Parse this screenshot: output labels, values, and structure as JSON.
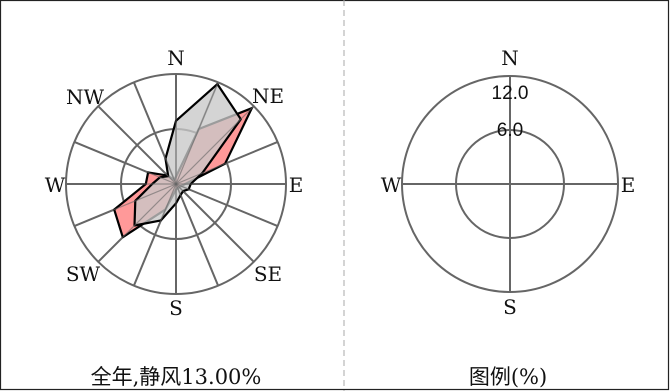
{
  "chart_data": [
    {
      "type": "windrose",
      "caption": "全年,静风13.00%",
      "directions": [
        "N",
        "NNE",
        "NE",
        "ENE",
        "E",
        "ESE",
        "SE",
        "SSE",
        "S",
        "SSW",
        "SW",
        "WSW",
        "W",
        "WNW",
        "NW",
        "NNW"
      ],
      "direction_labels": {
        "N": "N",
        "NE": "NE",
        "E": "E",
        "SE": "SE",
        "S": "S",
        "SW": "SW",
        "W": "W",
        "NW": "NW"
      },
      "rmax": 12.0,
      "rings": [
        6.0,
        12.0
      ],
      "series": [
        {
          "color": "#ff9999",
          "values": [
            0.8,
            6.5,
            11.7,
            5.8,
            1.0,
            0.6,
            0.5,
            0.5,
            0.6,
            3.0,
            8.2,
            7.3,
            3.3,
            3.3,
            1.3,
            0.5
          ]
        },
        {
          "color": "#c8c8c8",
          "values": [
            6.9,
            11.8,
            10.0,
            3.1,
            1.6,
            1.5,
            1.1,
            1.3,
            2.1,
            4.3,
            6.4,
            4.8,
            2.6,
            1.9,
            1.2,
            3.0
          ]
        }
      ]
    },
    {
      "type": "legend-rose",
      "caption": "图例(%)",
      "direction_labels": {
        "N": "N",
        "E": "E",
        "S": "S",
        "W": "W"
      },
      "rmax": 12.0,
      "rings": [
        6.0,
        12.0
      ],
      "ring_labels": [
        "6.0",
        "12.0"
      ]
    }
  ]
}
